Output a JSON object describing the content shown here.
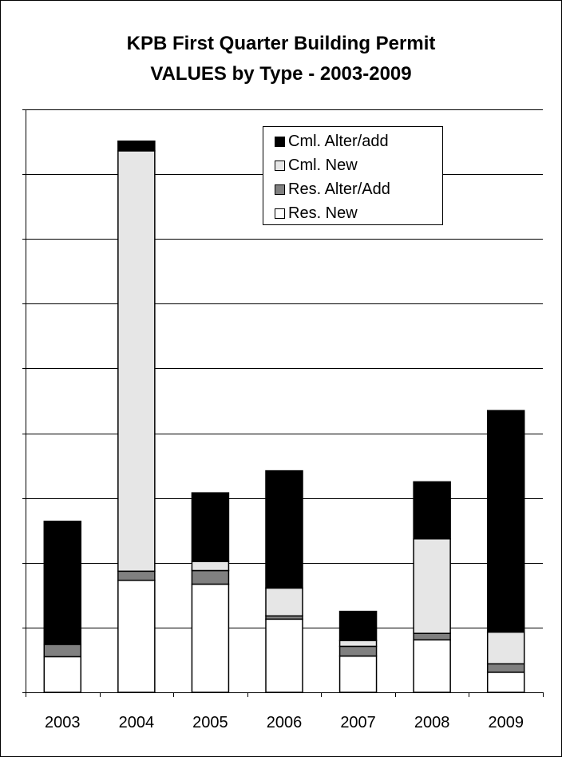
{
  "chart_data": {
    "type": "bar",
    "stacked": true,
    "title_line1": "KPB First Quarter Building Permit",
    "title_line2": "VALUES by Type - 2003-2009",
    "xlabel": "",
    "ylabel": "",
    "categories": [
      "2003",
      "2004",
      "2005",
      "2006",
      "2007",
      "2008",
      "2009"
    ],
    "ylim": [
      0,
      9
    ],
    "grid": true,
    "legend_position": "top-right",
    "series": [
      {
        "name": "Res. New",
        "color": "#ffffff",
        "values": [
          0.55,
          1.73,
          1.67,
          1.13,
          0.56,
          0.81,
          0.31
        ]
      },
      {
        "name": "Res. Alter/Add",
        "color": "#808080",
        "values": [
          0.19,
          0.14,
          0.21,
          0.05,
          0.15,
          0.1,
          0.13
        ]
      },
      {
        "name": "Cml. New",
        "color": "#e6e6e6",
        "values": [
          0.0,
          6.49,
          0.14,
          0.43,
          0.09,
          1.46,
          0.49
        ]
      },
      {
        "name": "Cml. Alter/add",
        "color": "#000000",
        "values": [
          1.9,
          0.15,
          1.06,
          1.81,
          0.45,
          0.88,
          3.42
        ]
      }
    ],
    "legend_order": [
      "Cml. Alter/add",
      "Cml. New",
      "Res. Alter/Add",
      "Res. New"
    ]
  }
}
